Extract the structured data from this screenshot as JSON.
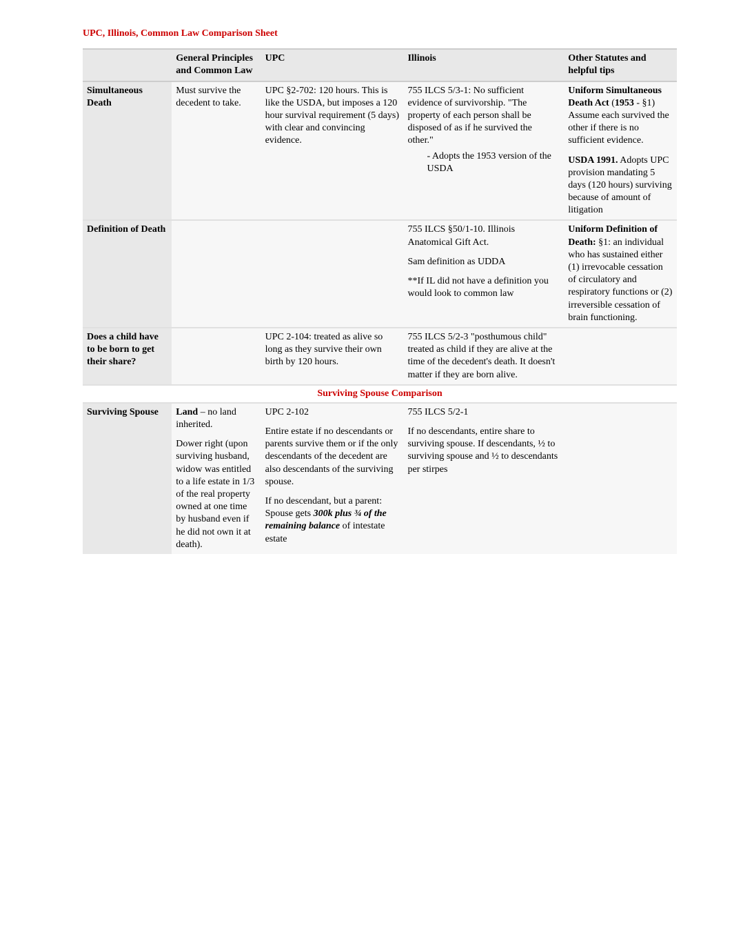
{
  "title": "UPC, Illinois, Common Law Comparison Sheet",
  "headers": {
    "general": "General Principles and Common Law",
    "upc": "UPC",
    "illinois": "Illinois",
    "other": "Other Statutes and helpful tips"
  },
  "rows": {
    "simdeath": {
      "label": "Simultaneous Death",
      "general": "Must survive the decedent to take.",
      "upc": "UPC §2-702: 120 hours. This is like the USDA, but imposes a 120 hour survival requirement (5 days) with clear and convincing evidence.",
      "illinois_main": "755 ILCS 5/3-1: No sufficient evidence of survivorship. \"The property of each person shall be disposed of as if he survived the other.\"",
      "illinois_bullet": "Adopts the 1953 version of the USDA",
      "other_run1_bold": "Uniform Simultaneous Death Act",
      "other_run1_paren": " (",
      "other_run1_year": "1953",
      "other_run1_rest": " - §1) Assume each survived the other if there is no sufficient evidence.",
      "other_run2_bold": "USDA 1991.",
      "other_run2_rest": " Adopts UPC provision mandating 5 days (120 hours) surviving because of amount of litigation"
    },
    "defdeath": {
      "label": "Definition of Death",
      "illinois_p1": "755 ILCS §50/1-10. Illinois Anatomical Gift Act.",
      "illinois_p2": "Sam definition as UDDA",
      "illinois_p3": "**If IL did not have a definition you would look to common law",
      "other_bold": "Uniform Definition of Death:",
      "other_rest": " §1: an individual who has sustained either (1) irrevocable cessation of circulatory and respiratory functions or (2) irreversible cessation of brain functioning."
    },
    "child": {
      "label": "Does a child have to be born to get their share?",
      "upc": "UPC 2-104: treated as alive so long as they survive their own birth by 120 hours.",
      "illinois": "755 ILCS 5/2-3 \"posthumous child\" treated as child if they are alive at the time of the decedent's death. It doesn't matter if they are born alive."
    },
    "section": "Surviving Spouse Comparison",
    "survspouse": {
      "label": "Surviving Spouse",
      "general_land_bold": "Land",
      "general_land_rest": " – no land inherited.",
      "general_p2": "Dower right (upon surviving husband, widow was entitled to a life estate in 1/3 of the real property owned at one time by husband even if he did not own it at death).",
      "upc_p1": "UPC 2-102",
      "upc_p2": "Entire estate if no descendants or parents survive them or if the only descendants of the decedent are also descendants of the surviving spouse.",
      "upc_p3_a": "If no descendant, but a parent: Spouse gets ",
      "upc_p3_b": "300k plus ¾ of the remaining balance",
      "upc_p3_c": " of intestate estate",
      "illinois_p1": "755 ILCS 5/2-1",
      "illinois_p2": "If no descendants, entire share to surviving spouse. If descendants, ½ to surviving spouse and ½ to descendants per stirpes"
    }
  }
}
